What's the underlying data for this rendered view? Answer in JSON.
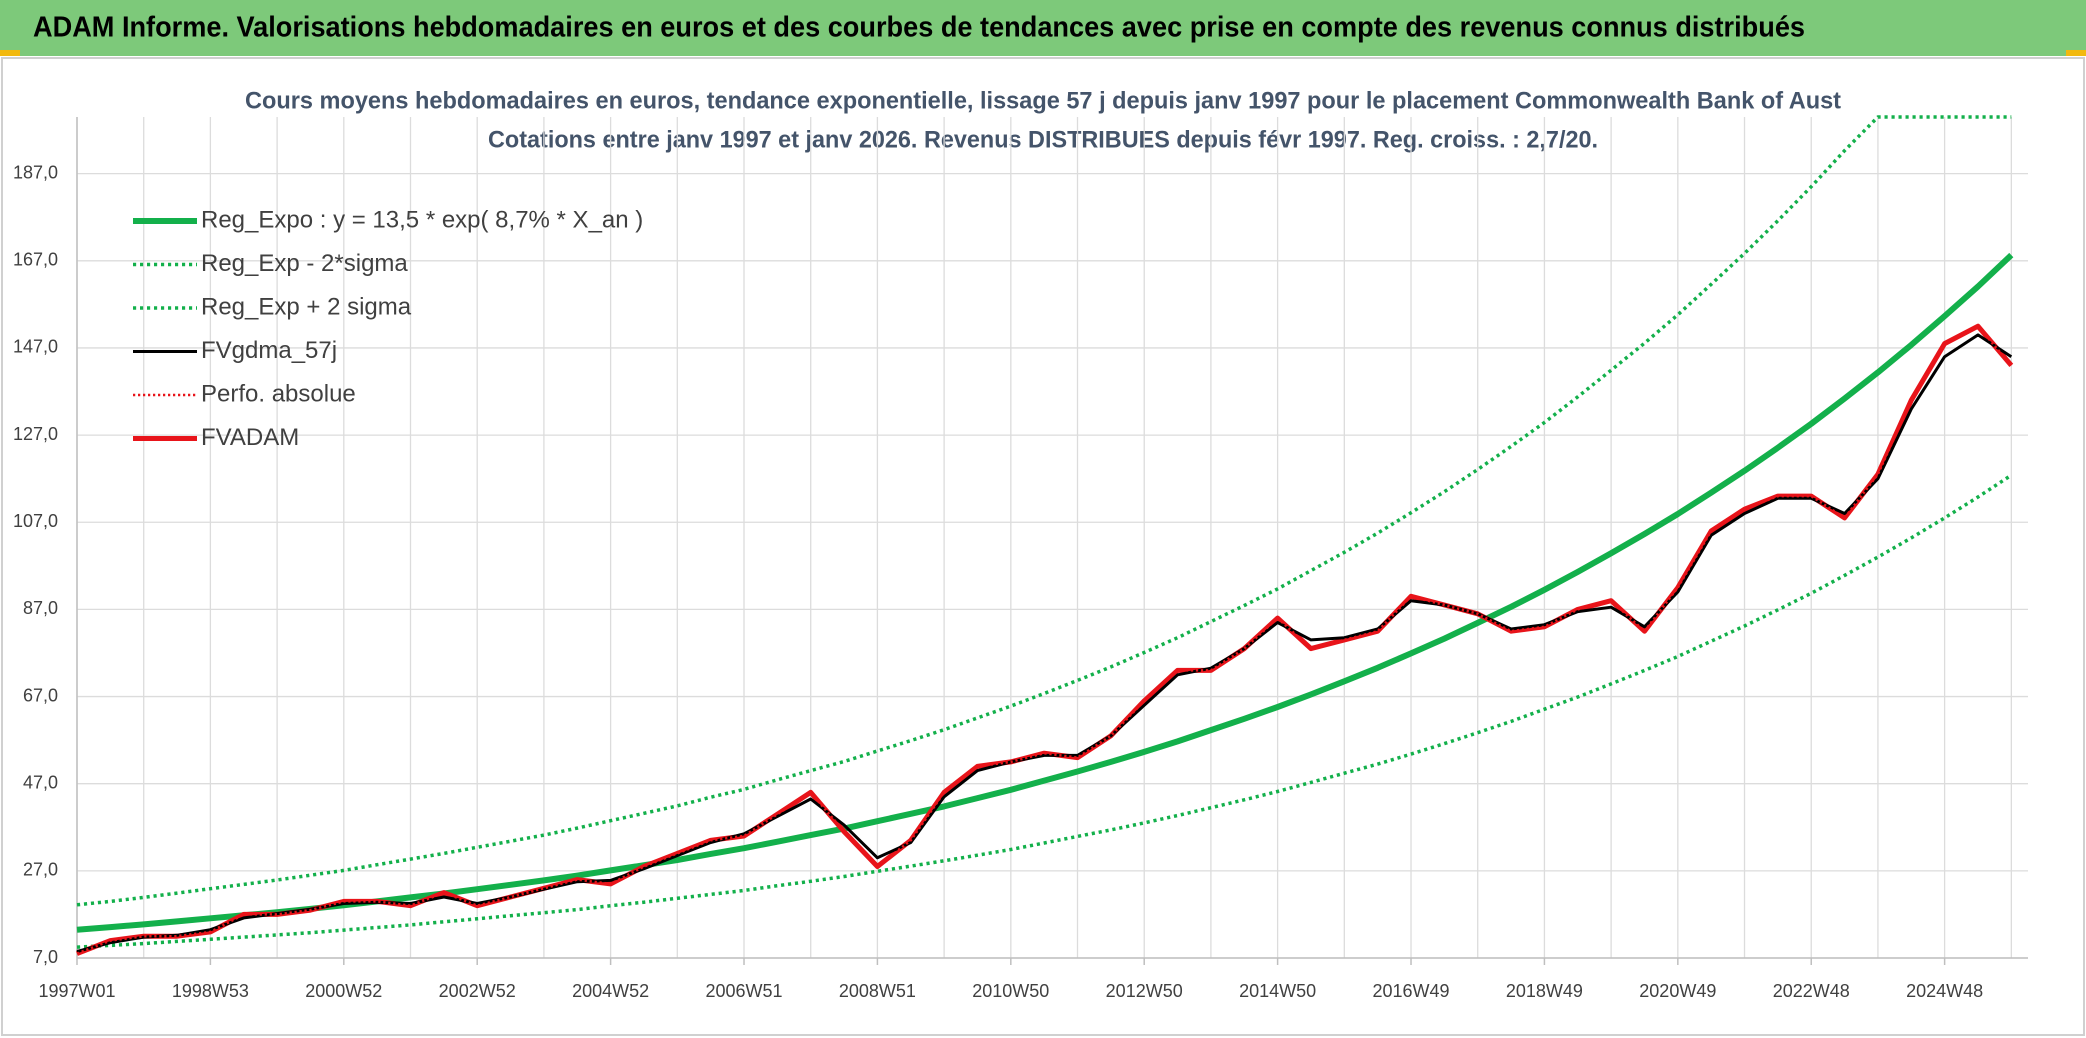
{
  "header": {
    "title": "ADAM Informe. Valorisations hebdomadaires en euros et des courbes de tendances avec prise en compte des revenus connus distribués"
  },
  "chart_data": {
    "type": "line",
    "title": "Cours moyens hebdomadaires en euros, tendance exponentielle, lissage 57 j depuis janv 1997 pour le placement Commonwealth Bank of Aust",
    "subtitle": "Cotations entre janv 1997 et janv 2026. Revenus DISTRIBUES depuis févr 1997. Reg. croiss. : 2,7/20.",
    "categories": [
      "1997W01",
      null,
      null,
      null,
      "1998W53",
      null,
      null,
      null,
      "2000W52",
      null,
      null,
      null,
      "2002W52",
      null,
      null,
      null,
      "2004W52",
      null,
      null,
      null,
      "2006W51",
      null,
      null,
      null,
      "2008W51",
      null,
      null,
      null,
      "2010W50",
      null,
      null,
      null,
      "2012W50",
      null,
      null,
      null,
      "2014W50",
      null,
      null,
      null,
      "2016W49",
      null,
      null,
      null,
      "2018W49",
      null,
      null,
      null,
      "2020W49",
      null,
      null,
      null,
      "2022W48",
      null,
      null,
      null,
      "2024W48",
      null,
      null
    ],
    "ylim": [
      7,
      200
    ],
    "yticks": [
      {
        "value": 7,
        "label": "7,0"
      },
      {
        "value": 27,
        "label": "27,0"
      },
      {
        "value": 47,
        "label": "47,0"
      },
      {
        "value": 67,
        "label": "67,0"
      },
      {
        "value": 87,
        "label": "87,0"
      },
      {
        "value": 107,
        "label": "107,0"
      },
      {
        "value": 127,
        "label": "127,0"
      },
      {
        "value": 147,
        "label": "147,0"
      },
      {
        "value": 167,
        "label": "167,0"
      },
      {
        "value": 187,
        "label": "187,0"
      }
    ],
    "grid": true,
    "legend": "top-left",
    "series": [
      {
        "name": "Reg_Expo : y = 13,5 * exp( 8,7% *  X_an )",
        "color": "#13b04b",
        "width": 6,
        "dash": "solid",
        "values": [
          13.5,
          14.1,
          14.7,
          15.4,
          16.1,
          16.8,
          17.5,
          18.3,
          19.1,
          20.0,
          20.9,
          21.8,
          22.8,
          23.8,
          24.8,
          25.9,
          27.1,
          28.3,
          29.5,
          30.9,
          32.2,
          33.7,
          35.2,
          36.7,
          38.4,
          40.1,
          41.8,
          43.7,
          45.6,
          47.7,
          49.8,
          52.0,
          54.3,
          56.7,
          59.3,
          61.9,
          64.6,
          67.5,
          70.5,
          73.6,
          76.9,
          80.3,
          83.9,
          87.6,
          91.5,
          95.6,
          99.9,
          104.3,
          108.9,
          113.8,
          118.8,
          124.1,
          129.6,
          135.4,
          141.4,
          147.7,
          154.3,
          161.1,
          168.3
        ]
      },
      {
        "name": "Reg_Exp - 2*sigma",
        "color": "#13b04b",
        "width": 3.5,
        "dash": "dotted",
        "values": [
          9.5,
          9.9,
          10.3,
          10.8,
          11.3,
          11.8,
          12.3,
          12.8,
          13.4,
          14.0,
          14.6,
          15.3,
          16.0,
          16.7,
          17.4,
          18.1,
          19.0,
          19.8,
          20.7,
          21.6,
          22.5,
          23.6,
          24.6,
          25.7,
          26.9,
          28.1,
          29.3,
          30.6,
          31.9,
          33.4,
          34.9,
          36.4,
          38.0,
          39.7,
          41.5,
          43.3,
          45.2,
          47.3,
          49.4,
          51.5,
          53.8,
          56.2,
          58.7,
          61.3,
          64.1,
          66.9,
          69.9,
          73.0,
          76.2,
          79.7,
          83.2,
          86.9,
          90.7,
          94.8,
          99.0,
          103.4,
          108.0,
          112.8,
          117.8
        ]
      },
      {
        "name": "Reg_Exp + 2 sigma",
        "color": "#13b04b",
        "width": 3.5,
        "dash": "dotted",
        "values": [
          19.2,
          20.0,
          20.9,
          21.9,
          22.9,
          23.9,
          24.9,
          26.0,
          27.1,
          28.4,
          29.7,
          31.0,
          32.4,
          33.8,
          35.2,
          36.8,
          38.5,
          40.2,
          41.9,
          43.9,
          45.7,
          47.9,
          50.0,
          52.1,
          54.5,
          56.9,
          59.4,
          62.1,
          64.8,
          67.7,
          70.7,
          73.8,
          77.1,
          80.5,
          84.2,
          87.9,
          91.7,
          95.9,
          100.1,
          104.5,
          109.2,
          114.0,
          119.1,
          124.4,
          129.9,
          135.8,
          141.9,
          148.1,
          154.6,
          161.6,
          168.7,
          176.2,
          184.0,
          192.3,
          200,
          200,
          200,
          200,
          200
        ]
      },
      {
        "name": "FVgdma_57j",
        "color": "#000000",
        "width": 3,
        "dash": "solid",
        "z": 2,
        "values": [
          8.5,
          10.5,
          11.8,
          12.2,
          13.5,
          16.2,
          17.2,
          18.2,
          19.5,
          19.8,
          19.5,
          21.0,
          19.5,
          21.0,
          22.8,
          24.5,
          24.8,
          27.5,
          30.5,
          33.5,
          35.5,
          39.5,
          43.5,
          37.5,
          30.0,
          33.5,
          44.0,
          50.0,
          52.0,
          53.5,
          53.5,
          58.0,
          65.0,
          72.0,
          73.5,
          78.0,
          84.0,
          80.0,
          80.5,
          82.5,
          89.0,
          88.0,
          86.0,
          82.5,
          83.5,
          86.5,
          87.5,
          83.0,
          91.0,
          104.0,
          109.0,
          112.5,
          112.5,
          109.0,
          117.0,
          133.0,
          145.0,
          150.0,
          145.0
        ]
      },
      {
        "name": "Perfo. absolue",
        "color": "#e8141a",
        "width": 2.5,
        "dash": "dotted",
        "z": 3,
        "values": [
          8,
          11,
          12,
          12,
          13,
          17,
          17,
          18,
          20,
          20,
          19,
          22,
          19,
          21,
          23,
          25,
          24,
          28,
          31,
          34,
          35,
          40,
          45,
          36,
          28,
          34,
          45,
          51,
          52,
          54,
          53,
          58,
          66,
          73,
          73,
          78,
          85,
          78,
          80,
          82,
          90,
          88,
          86,
          82,
          83,
          87,
          89,
          82,
          92,
          105,
          110,
          113,
          113,
          108,
          118,
          135,
          148,
          152,
          143
        ]
      },
      {
        "name": "FVADAM",
        "color": "#e8141a",
        "width": 5,
        "dash": "solid",
        "z": 1,
        "values": [
          8,
          11,
          12,
          12,
          13,
          17,
          17,
          18,
          20,
          20,
          19,
          22,
          19,
          21,
          23,
          25,
          24,
          28,
          31,
          34,
          35,
          40,
          45,
          36,
          28,
          34,
          45,
          51,
          52,
          54,
          53,
          58,
          66,
          73,
          73,
          78,
          85,
          78,
          80,
          82,
          90,
          88,
          86,
          82,
          83,
          87,
          89,
          82,
          92,
          105,
          110,
          113,
          113,
          108,
          118,
          135,
          148,
          152,
          143
        ]
      }
    ]
  }
}
